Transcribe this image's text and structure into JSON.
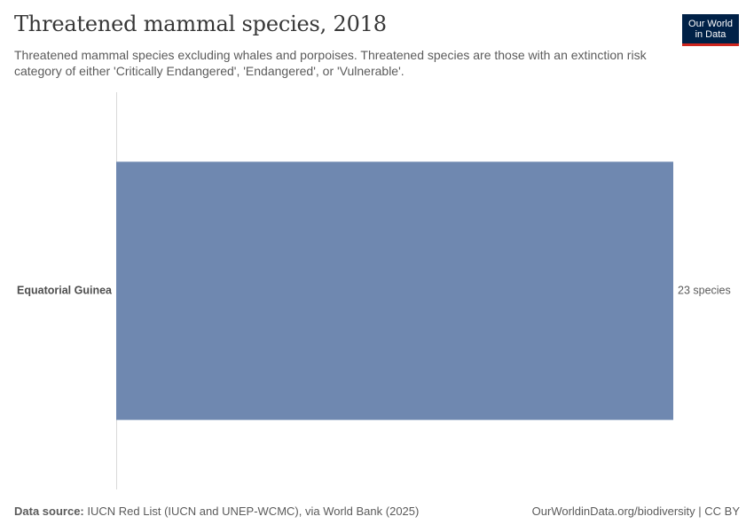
{
  "header": {
    "title": "Threatened mammal species, 2018",
    "subtitle": "Threatened mammal species excluding whales and porpoises. Threatened species are those with an extinction risk category of either 'Critically Endangered', 'Endangered', or 'Vulnerable'."
  },
  "logo": {
    "line1": "Our World",
    "line2": "in Data",
    "background": "#002147",
    "accent": "#ce261e"
  },
  "chart_data": {
    "type": "bar",
    "orientation": "horizontal",
    "title": "Threatened mammal species, 2018",
    "categories": [
      "Equatorial Guinea"
    ],
    "values": [
      23
    ],
    "value_labels": [
      "23 species"
    ],
    "unit": "species",
    "xlim": [
      0,
      23
    ],
    "bar_color": "#6f88b0",
    "xlabel": "",
    "ylabel": "",
    "grid": false
  },
  "footer": {
    "source_label": "Data source:",
    "source_text": "IUCN Red List (IUCN and UNEP-WCMC), via World Bank (2025)",
    "link_text": "OurWorldinData.org/biodiversity | CC BY"
  }
}
